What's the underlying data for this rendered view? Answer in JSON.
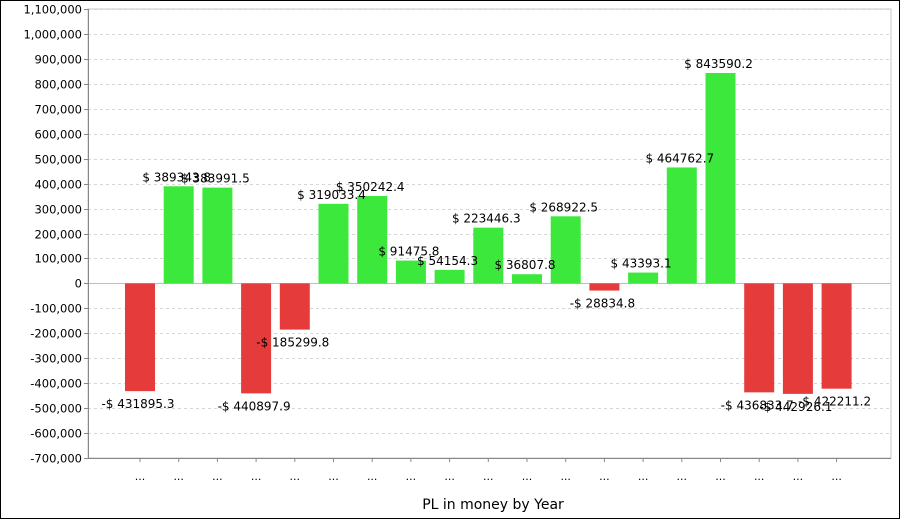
{
  "chart_data": {
    "type": "bar",
    "title": "",
    "xlabel": "PL in money by Year",
    "ylabel": "",
    "ylim": [
      -700000,
      1100000
    ],
    "grid": true,
    "yticks": [
      1100000,
      1000000,
      900000,
      800000,
      700000,
      600000,
      500000,
      400000,
      300000,
      200000,
      100000,
      0,
      -100000,
      -200000,
      -300000,
      -400000,
      -500000,
      -600000,
      -700000
    ],
    "ytick_labels": [
      "1,100,000",
      "1,000,000",
      "900,000",
      "800,000",
      "700,000",
      "600,000",
      "500,000",
      "400,000",
      "300,000",
      "200,000",
      "100,000",
      "0",
      "-100,000",
      "-200,000",
      "-300,000",
      "-400,000",
      "-500,000",
      "-600,000",
      "-700,000"
    ],
    "categories": [
      "...",
      "...",
      "...",
      "...",
      "...",
      "...",
      "...",
      "...",
      "...",
      "...",
      "...",
      "...",
      "...",
      "...",
      "...",
      "...",
      "...",
      "...",
      "..."
    ],
    "values": [
      -431895.3,
      389343.8,
      383991.5,
      -440897.9,
      -185299.8,
      319033.4,
      350242.4,
      91475.8,
      54154.3,
      223446.3,
      36807.8,
      268922.5,
      -28834.8,
      43393.1,
      464762.7,
      843590.2,
      -436833.7,
      -442926.1,
      -422211.2
    ],
    "data_labels": [
      "-$ 431895.3",
      "$ 389343.8",
      "$ 383991.5",
      "-$ 440897.9",
      "-$ 185299.8",
      "$ 319033.4",
      "$ 350242.4",
      "$ 91475.8",
      "$ 54154.3",
      "$ 223446.3",
      "$ 36807.8",
      "$ 268922.5",
      "-$ 28834.8",
      "$ 43393.1",
      "$ 464762.7",
      "$ 843590.2",
      "-$ 436833.7",
      "-$ 442926.1",
      "-$ 422211.2"
    ],
    "colors": {
      "positive": "#3de83d",
      "negative": "#e63b3b",
      "grid": "#d6d6d6",
      "axis": "#888888"
    }
  }
}
